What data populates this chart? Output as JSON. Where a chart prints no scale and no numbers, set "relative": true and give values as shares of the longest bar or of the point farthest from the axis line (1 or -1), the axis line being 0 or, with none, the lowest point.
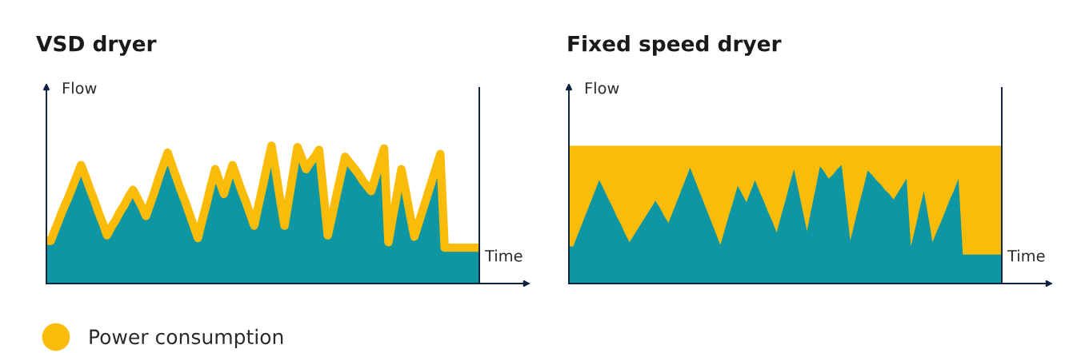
{
  "chart_data": [
    {
      "type": "area",
      "title": "VSD dryer",
      "ylabel": "Flow",
      "xlabel": "Time",
      "relative": true,
      "legend": "bottom left",
      "categories": [
        null,
        null,
        null,
        null,
        null,
        null,
        null,
        null,
        null,
        null,
        null,
        null,
        null,
        null,
        null,
        null,
        null,
        null,
        null,
        null,
        null,
        null,
        null,
        null,
        null,
        null,
        null,
        null,
        null,
        null,
        null,
        null,
        null,
        null,
        null,
        null,
        null,
        null,
        null,
        null,
        null,
        null,
        null,
        null,
        null,
        null,
        null,
        null,
        null,
        null,
        null,
        null,
        null,
        null,
        null,
        null,
        null,
        null,
        null,
        null,
        null,
        null,
        null,
        null,
        null,
        null,
        null,
        null,
        null,
        null,
        null,
        null,
        null,
        null,
        null,
        null,
        null,
        null,
        null,
        null,
        null,
        null,
        null,
        null,
        null,
        null,
        null,
        null,
        null,
        null,
        null,
        null,
        null,
        null,
        null,
        null,
        null,
        null,
        null,
        null,
        null
      ],
      "series": [
        {
          "color": "#0e97a2",
          "values": [
            0.31,
            0.31,
            0.39,
            0.47,
            0.55,
            0.62,
            0.7,
            0.78,
            0.86,
            0.78,
            0.69,
            0.61,
            0.52,
            0.44,
            0.35,
            0.41,
            0.46,
            0.52,
            0.57,
            0.63,
            0.68,
            0.62,
            0.56,
            0.49,
            0.58,
            0.67,
            0.77,
            0.86,
            0.95,
            0.86,
            0.77,
            0.68,
            0.6,
            0.51,
            0.42,
            0.33,
            0.46,
            0.58,
            0.71,
            0.83,
            0.74,
            0.65,
            0.76,
            0.86,
            0.77,
            0.68,
            0.6,
            0.51,
            0.42,
            0.57,
            0.71,
            0.86,
            1.0,
            0.81,
            0.61,
            0.42,
            0.61,
            0.8,
            0.99,
            0.91,
            0.83,
            0.88,
            0.92,
            0.97,
            0.66,
            0.35,
            0.49,
            0.64,
            0.78,
            0.92,
            0.88,
            0.84,
            0.8,
            0.75,
            0.71,
            0.67,
            0.77,
            0.88,
            0.98,
            0.3,
            0.48,
            0.65,
            0.83,
            0.67,
            0.5,
            0.34,
            0.44,
            0.54,
            0.64,
            0.74,
            0.84,
            0.94,
            0.26,
            0.26,
            0.26,
            0.26,
            0.26,
            0.26,
            0.26,
            0.26,
            0.26
          ]
        },
        {
          "type": "line",
          "name": "Power consumption",
          "color": "#fbbc09",
          "values": [
            0.31,
            0.31,
            0.39,
            0.47,
            0.55,
            0.62,
            0.7,
            0.78,
            0.86,
            0.78,
            0.69,
            0.61,
            0.52,
            0.44,
            0.35,
            0.41,
            0.46,
            0.52,
            0.57,
            0.63,
            0.68,
            0.62,
            0.56,
            0.49,
            0.58,
            0.67,
            0.77,
            0.86,
            0.95,
            0.86,
            0.77,
            0.68,
            0.6,
            0.51,
            0.42,
            0.33,
            0.46,
            0.58,
            0.71,
            0.83,
            0.74,
            0.65,
            0.76,
            0.86,
            0.77,
            0.68,
            0.6,
            0.51,
            0.42,
            0.57,
            0.71,
            0.86,
            1.0,
            0.81,
            0.61,
            0.42,
            0.61,
            0.8,
            0.99,
            0.91,
            0.83,
            0.88,
            0.92,
            0.97,
            0.66,
            0.35,
            0.49,
            0.64,
            0.78,
            0.92,
            0.88,
            0.84,
            0.8,
            0.75,
            0.71,
            0.67,
            0.77,
            0.88,
            0.98,
            0.3,
            0.48,
            0.65,
            0.83,
            0.67,
            0.5,
            0.34,
            0.44,
            0.54,
            0.64,
            0.74,
            0.84,
            0.94,
            0.26,
            0.26,
            0.26,
            0.26,
            0.26,
            0.26,
            0.26,
            0.26,
            0.26
          ]
        }
      ]
    },
    {
      "type": "area",
      "title": "Fixed speed dryer",
      "ylabel": "Flow",
      "xlabel": "Time",
      "relative": true,
      "categories": [
        null,
        null,
        null,
        null,
        null,
        null,
        null,
        null,
        null,
        null,
        null,
        null,
        null,
        null,
        null,
        null,
        null,
        null,
        null,
        null,
        null,
        null,
        null,
        null,
        null,
        null,
        null,
        null,
        null,
        null,
        null,
        null,
        null,
        null,
        null,
        null,
        null,
        null,
        null,
        null,
        null,
        null,
        null,
        null,
        null,
        null,
        null,
        null,
        null,
        null,
        null,
        null,
        null,
        null,
        null,
        null,
        null,
        null,
        null,
        null,
        null,
        null,
        null,
        null,
        null,
        null,
        null,
        null,
        null,
        null,
        null,
        null,
        null,
        null,
        null,
        null,
        null,
        null,
        null,
        null,
        null,
        null,
        null,
        null,
        null,
        null,
        null,
        null,
        null,
        null,
        null,
        null,
        null,
        null,
        null,
        null,
        null,
        null,
        null,
        null,
        null
      ],
      "series": [
        {
          "color": "#fbbc09",
          "values": [
            1,
            1,
            1,
            1,
            1,
            1,
            1,
            1,
            1,
            1,
            1,
            1,
            1,
            1,
            1,
            1,
            1,
            1,
            1,
            1,
            1,
            1,
            1,
            1,
            1,
            1,
            1,
            1,
            1,
            1,
            1,
            1,
            1,
            1,
            1,
            1,
            1,
            1,
            1,
            1,
            1,
            1,
            1,
            1,
            1,
            1,
            1,
            1,
            1,
            1,
            1,
            1,
            1,
            1,
            1,
            1,
            1,
            1,
            1,
            1,
            1,
            1,
            1,
            1,
            1,
            1,
            1,
            1,
            1,
            1,
            1,
            1,
            1,
            1,
            1,
            1,
            1,
            1,
            1,
            1,
            1,
            1,
            1,
            1,
            1,
            1,
            1,
            1,
            1,
            1,
            1,
            1,
            1,
            1,
            1,
            1,
            1,
            1,
            1,
            1,
            1
          ]
        },
        {
          "color": "#0e97a2",
          "values": [
            0.27,
            0.27,
            0.35,
            0.43,
            0.51,
            0.59,
            0.67,
            0.75,
            0.69,
            0.62,
            0.56,
            0.49,
            0.43,
            0.36,
            0.3,
            0.35,
            0.4,
            0.45,
            0.5,
            0.55,
            0.6,
            0.55,
            0.49,
            0.44,
            0.52,
            0.6,
            0.68,
            0.76,
            0.84,
            0.76,
            0.68,
            0.6,
            0.52,
            0.44,
            0.36,
            0.28,
            0.39,
            0.5,
            0.6,
            0.71,
            0.65,
            0.59,
            0.67,
            0.75,
            0.67,
            0.6,
            0.52,
            0.45,
            0.37,
            0.49,
            0.6,
            0.72,
            0.83,
            0.68,
            0.53,
            0.38,
            0.54,
            0.69,
            0.85,
            0.81,
            0.76,
            0.79,
            0.83,
            0.86,
            0.59,
            0.31,
            0.44,
            0.57,
            0.69,
            0.82,
            0.79,
            0.75,
            0.72,
            0.68,
            0.65,
            0.61,
            0.66,
            0.71,
            0.76,
            0.27,
            0.4,
            0.54,
            0.67,
            0.49,
            0.3,
            0.38,
            0.45,
            0.53,
            0.61,
            0.68,
            0.76,
            0.21,
            0.21,
            0.21,
            0.21,
            0.21,
            0.21,
            0.21,
            0.21,
            0.21,
            0.21
          ]
        }
      ]
    }
  ]
}
